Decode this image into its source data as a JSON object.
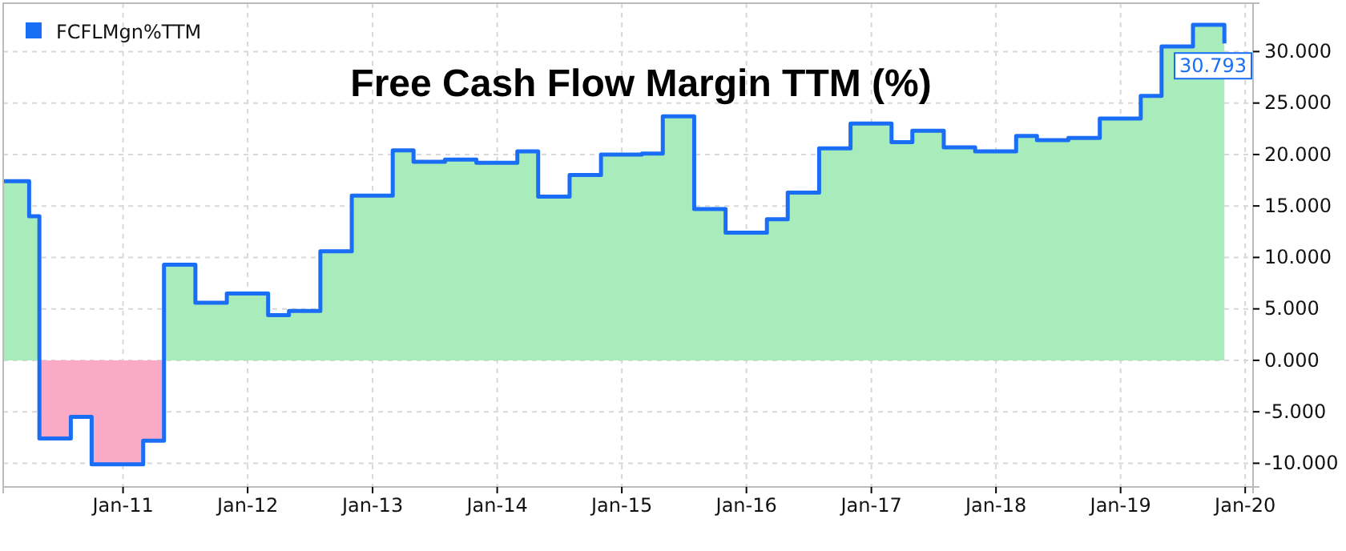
{
  "chart_data": {
    "type": "step",
    "title": "Free Cash Flow Margin TTM (%)",
    "x": [
      "2010-01-15",
      "2010-04",
      "2010-05",
      "2010-08",
      "2010-10",
      "2011-03",
      "2011-05",
      "2011-08",
      "2011-11",
      "2012-03",
      "2012-05",
      "2012-08",
      "2012-11",
      "2013-03",
      "2013-05",
      "2013-08",
      "2013-11",
      "2014-03",
      "2014-05",
      "2014-08",
      "2014-11",
      "2015-03",
      "2015-05",
      "2015-08",
      "2015-11",
      "2016-03",
      "2016-05",
      "2016-08",
      "2016-11",
      "2017-03",
      "2017-05",
      "2017-08",
      "2017-11",
      "2018-03",
      "2018-05",
      "2018-08",
      "2018-11",
      "2019-03",
      "2019-05",
      "2019-08",
      "2019-11"
    ],
    "series": [
      {
        "name": "FCFLMgn%TTM",
        "color": "#1a6ef5",
        "values": [
          17.4,
          14.0,
          -7.6,
          -5.5,
          -10.1,
          -7.8,
          9.3,
          5.6,
          6.5,
          4.4,
          4.8,
          10.6,
          16.0,
          20.4,
          19.3,
          19.5,
          19.2,
          20.3,
          15.9,
          18.0,
          20.0,
          20.1,
          23.7,
          14.7,
          12.4,
          13.7,
          16.3,
          20.6,
          23.0,
          21.2,
          22.3,
          20.7,
          20.3,
          21.8,
          21.4,
          21.6,
          23.5,
          25.7,
          30.5,
          32.6,
          30.793
        ],
        "value_labels": [
          null,
          null,
          null,
          null,
          null,
          null,
          null,
          null,
          null,
          null,
          null,
          null,
          null,
          null,
          null,
          null,
          null,
          null,
          null,
          null,
          null,
          null,
          null,
          null,
          null,
          null,
          null,
          null,
          null,
          null,
          null,
          null,
          null,
          null,
          null,
          null,
          null,
          null,
          null,
          null,
          "30.793"
        ]
      }
    ],
    "colors": [
      "#a8ecbc",
      "#fbaac5"
    ],
    "xlim": [
      "2010-01-15",
      "2020-01-24"
    ],
    "xticks": [
      {
        "value": "2011-01",
        "label": "Jan-11"
      },
      {
        "value": "2012-01",
        "label": "Jan-12"
      },
      {
        "value": "2013-01",
        "label": "Jan-13"
      },
      {
        "value": "2014-01",
        "label": "Jan-14"
      },
      {
        "value": "2015-01",
        "label": "Jan-15"
      },
      {
        "value": "2016-01",
        "label": "Jan-16"
      },
      {
        "value": "2017-01",
        "label": "Jan-17"
      },
      {
        "value": "2018-01",
        "label": "Jan-18"
      },
      {
        "value": "2019-01",
        "label": "Jan-19"
      },
      {
        "value": "2020-01",
        "label": "Jan-20"
      }
    ],
    "ylim": [
      -12.3,
      34.7
    ],
    "yticks": [
      {
        "value": -10,
        "label": "-10.000"
      },
      {
        "value": -5,
        "label": "-5.000"
      },
      {
        "value": 0,
        "label": "0.000"
      },
      {
        "value": 5,
        "label": "5.000"
      },
      {
        "value": 10,
        "label": "10.000"
      },
      {
        "value": 15,
        "label": "15.000"
      },
      {
        "value": 20,
        "label": "20.000"
      },
      {
        "value": 25,
        "label": "25.000"
      },
      {
        "value": 30,
        "label": "30.000"
      }
    ],
    "grid": true,
    "legend": "top left"
  }
}
